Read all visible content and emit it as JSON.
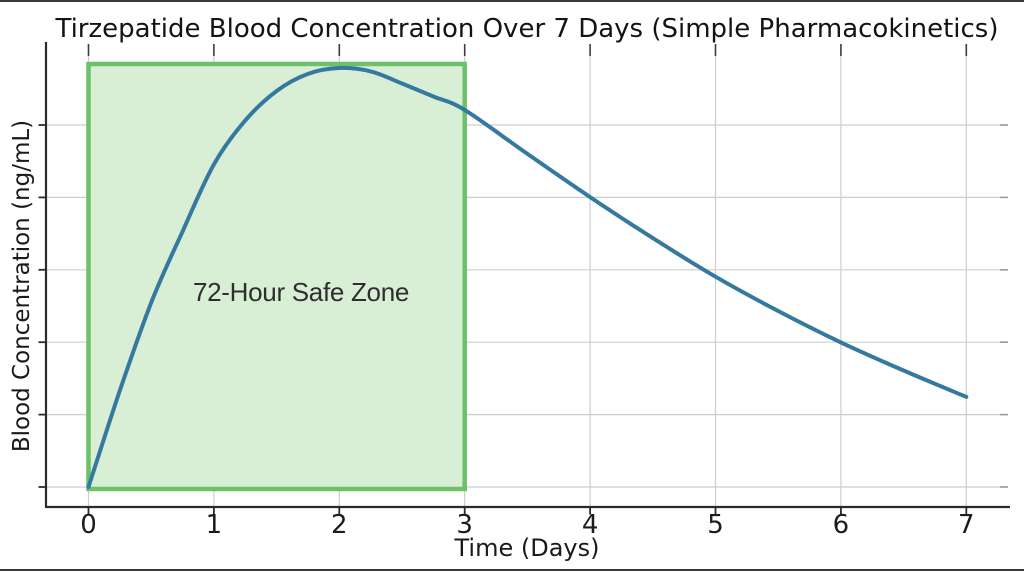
{
  "figure": {
    "background_color": "#ffffff",
    "frame_line_color": "#1c1c1c"
  },
  "chart_data": {
    "type": "line",
    "title": "Tirzepatide Blood Concentration Over 7 Days (Simple Pharmacokinetics)",
    "xlabel": "Time (Days)",
    "ylabel": "Blood Concentration (ng/mL)",
    "x_tick_labels": [
      "0",
      "1",
      "2",
      "3",
      "4",
      "5",
      "6",
      "7"
    ],
    "xlim": [
      0,
      7
    ],
    "y_tick_labels_visible": false,
    "y_gridline_count": 6,
    "grid": true,
    "grid_color": "#cdcdcd",
    "axis_color": "#2b2b2b",
    "series": [
      {
        "name": "blood-concentration-curve",
        "color": "#35799f",
        "peak_time_days": 2.0,
        "x": [
          0,
          0.25,
          0.5,
          0.75,
          1,
          1.25,
          1.5,
          1.75,
          2,
          2.25,
          2.5,
          2.75,
          3,
          3.5,
          4,
          4.5,
          5,
          5.5,
          6,
          6.5,
          7
        ],
        "values_percent_of_peak": [
          0,
          23,
          44,
          61,
          77,
          87.5,
          94.5,
          98.6,
          100,
          99.2,
          96.3,
          93.2,
          90,
          79.5,
          69.2,
          59.4,
          50.2,
          42,
          34.5,
          27.8,
          21.5
        ]
      }
    ],
    "safe_zone": {
      "label": "72-Hour Safe Zone",
      "x_start_days": 0,
      "x_end_days": 3,
      "fill_color": "#d9efd5",
      "border_color": "#6dc168"
    }
  }
}
